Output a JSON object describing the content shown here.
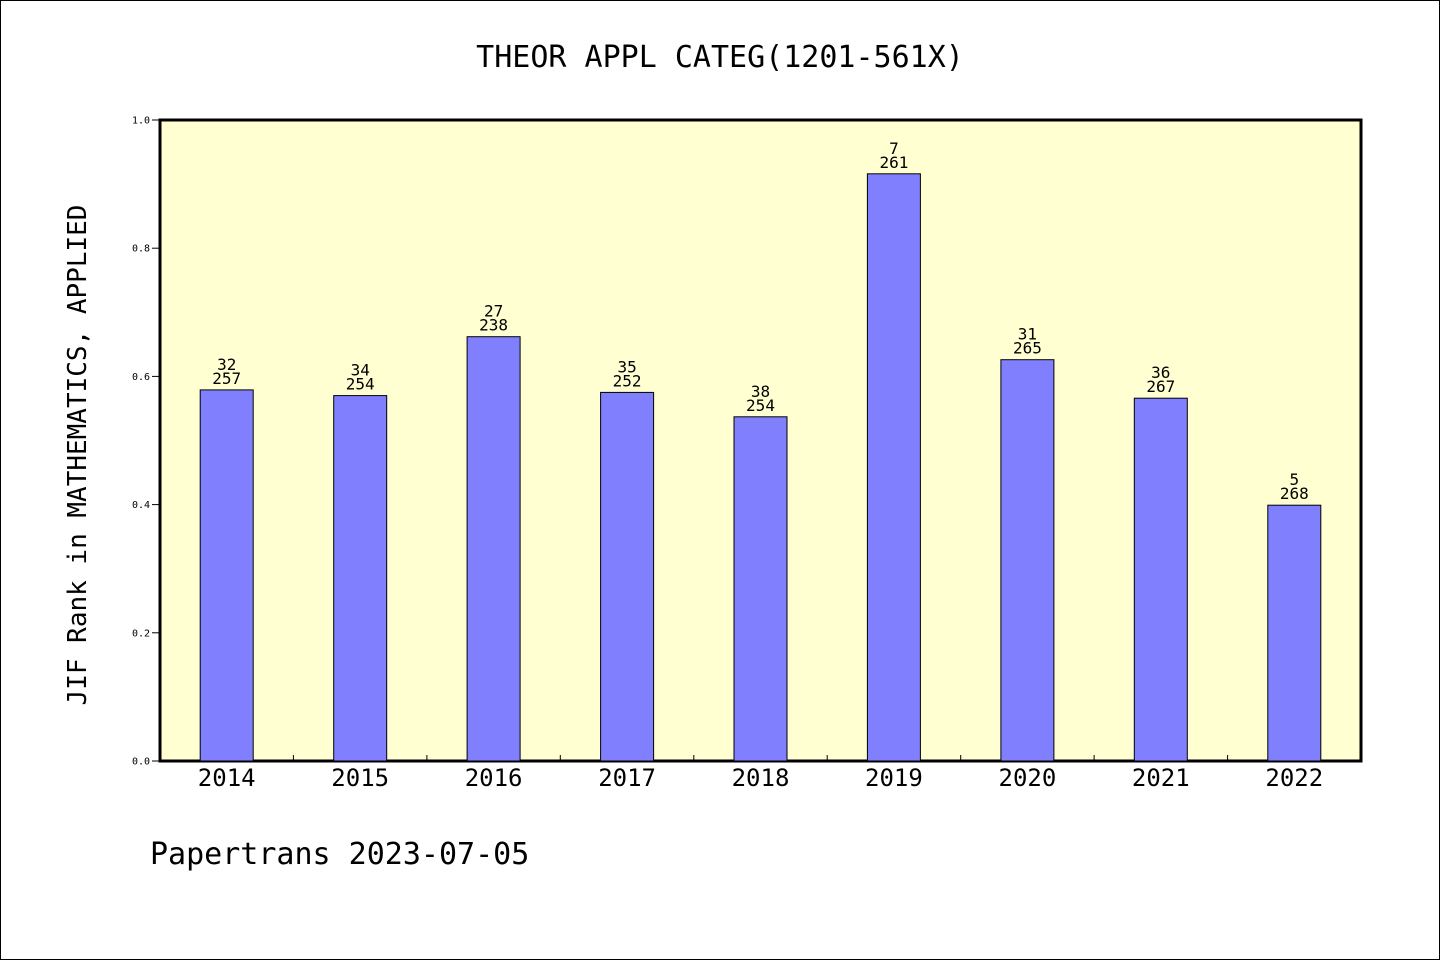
{
  "chart_data": {
    "type": "bar",
    "title": "THEOR APPL CATEG(1201-561X)",
    "xlabel": "",
    "ylabel": "JIF Rank in MATHEMATICS, APPLIED",
    "ylim": [
      0,
      1.0
    ],
    "yticks": [
      "0.0",
      "0.2",
      "0.4",
      "0.6",
      "0.8",
      "1.0"
    ],
    "categories": [
      "2014",
      "2015",
      "2016",
      "2017",
      "2018",
      "2019",
      "2020",
      "2021",
      "2022"
    ],
    "values": [
      0.579,
      0.57,
      0.662,
      0.575,
      0.537,
      0.916,
      0.626,
      0.566,
      0.399
    ],
    "ranks": [
      "32",
      "34",
      "27",
      "35",
      "38",
      "7",
      "31",
      "36",
      "5"
    ],
    "totals": [
      "257",
      "254",
      "238",
      "252",
      "254",
      "261",
      "265",
      "267",
      "268"
    ],
    "grid": false,
    "colors": {
      "plot_background": "#ffffd2",
      "bar_fill": "#8080ff",
      "bar_edge": "#000000"
    }
  },
  "footer": {
    "text": "Papertrans 2023-07-05"
  }
}
